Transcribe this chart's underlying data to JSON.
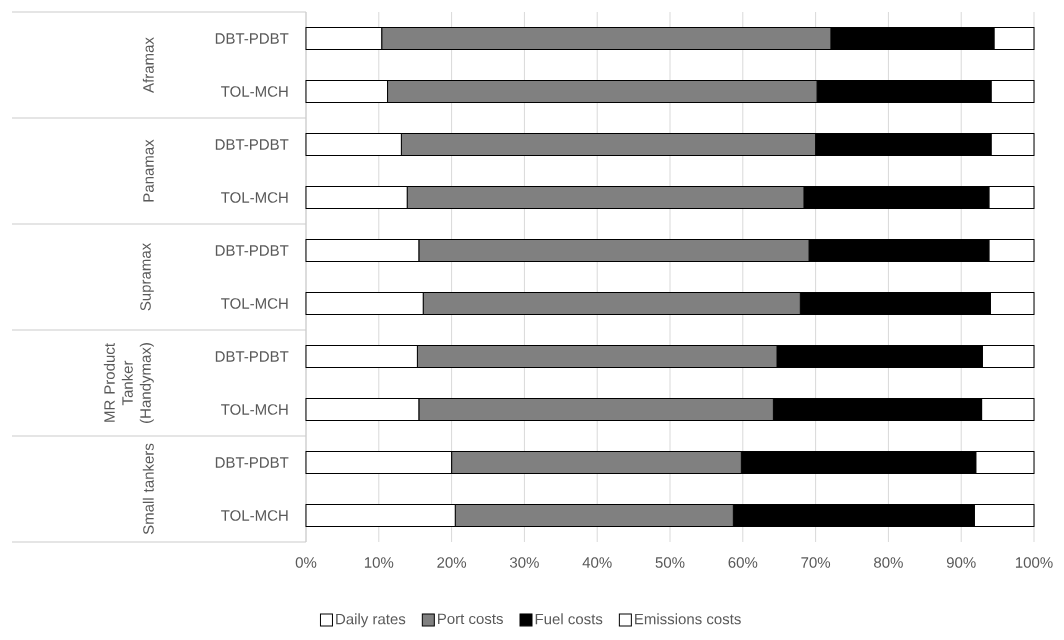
{
  "chart_data": {
    "type": "bar",
    "orientation": "horizontal",
    "stacked": true,
    "categories": [
      "DBT-PDBT",
      "TOL-MCH",
      "DBT-PDBT",
      "TOL-MCH",
      "DBT-PDBT",
      "TOL-MCH",
      "DBT-PDBT",
      "TOL-MCH",
      "DBT-PDBT",
      "TOL-MCH"
    ],
    "series": [
      {
        "name": "Daily rates",
        "color": "#ffffff",
        "values": [
          10.4,
          11.2,
          13.1,
          13.9,
          15.5,
          16.1,
          15.3,
          15.5,
          20.0,
          20.5
        ]
      },
      {
        "name": "Port costs",
        "color": "#808080",
        "values": [
          61.7,
          59.0,
          56.9,
          54.5,
          53.6,
          51.8,
          49.4,
          48.7,
          39.8,
          38.2
        ]
      },
      {
        "name": "Fuel costs",
        "color": "#000000",
        "values": [
          22.4,
          23.9,
          24.1,
          25.4,
          24.7,
          26.1,
          28.2,
          28.6,
          32.2,
          33.1
        ]
      },
      {
        "name": "Emissions costs",
        "color": "#ffffff",
        "values": [
          5.5,
          5.9,
          5.9,
          6.2,
          6.2,
          6.0,
          7.1,
          7.2,
          8.0,
          8.2
        ]
      }
    ],
    "xlim": [
      0,
      100
    ],
    "xticks": [
      {
        "value": 0,
        "label": "0%"
      },
      {
        "value": 10,
        "label": "10%"
      },
      {
        "value": 20,
        "label": "20%"
      },
      {
        "value": 30,
        "label": "30%"
      },
      {
        "value": 40,
        "label": "40%"
      },
      {
        "value": 50,
        "label": "50%"
      },
      {
        "value": 60,
        "label": "60%"
      },
      {
        "value": 70,
        "label": "70%"
      },
      {
        "value": 80,
        "label": "80%"
      },
      {
        "value": 90,
        "label": "90%"
      },
      {
        "value": 100,
        "label": "100%"
      }
    ],
    "annotations": [
      "Aframax",
      "Panamax",
      "Supramax",
      "MR Product Tanker (Handymax)",
      "Small tankers"
    ],
    "grid": "x",
    "legend": "bottom"
  }
}
